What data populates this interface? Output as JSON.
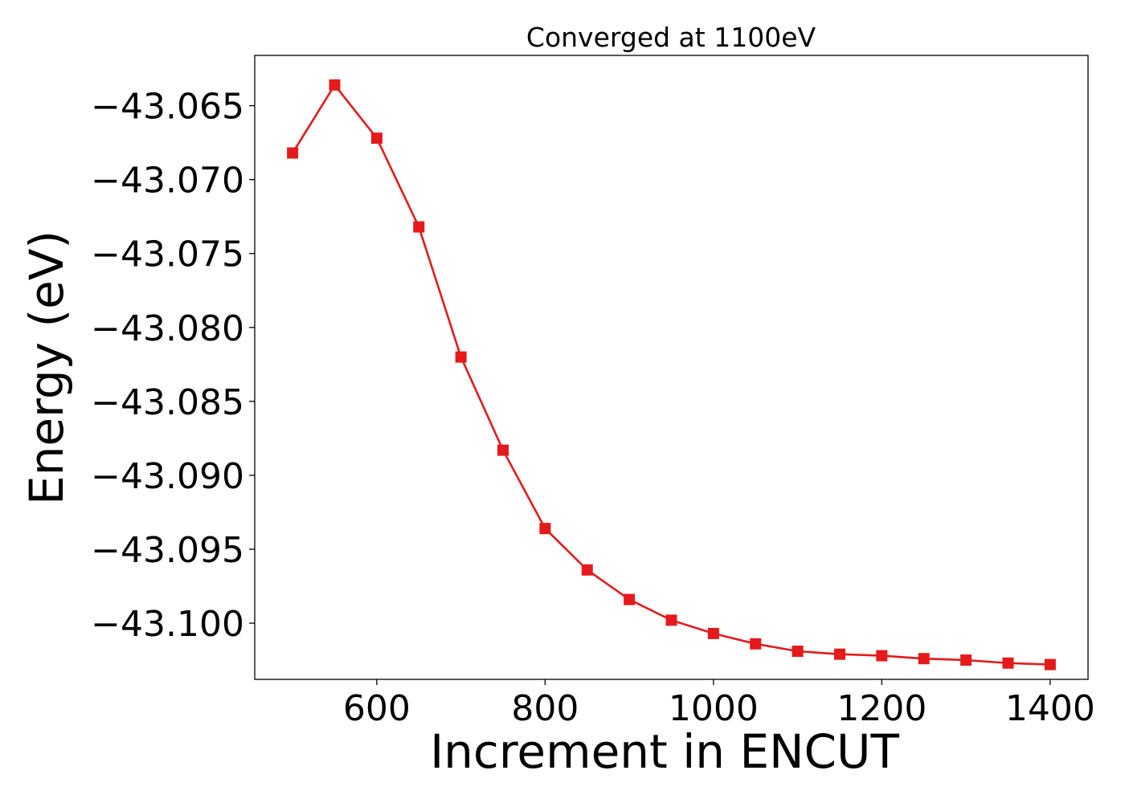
{
  "chart_data": {
    "type": "line",
    "title": "Converged at 1100eV",
    "xlabel": "Increment in ENCUT",
    "ylabel": "Energy (eV)",
    "xlim": [
      455,
      1445
    ],
    "ylim": [
      -43.1038,
      -43.0616
    ],
    "x_ticks": [
      600,
      800,
      1000,
      1200,
      1400
    ],
    "x_tick_labels": [
      "600",
      "800",
      "1000",
      "1200",
      "1400"
    ],
    "y_ticks": [
      -43.065,
      -43.07,
      -43.075,
      -43.08,
      -43.085,
      -43.09,
      -43.095,
      -43.1
    ],
    "y_tick_labels": [
      "−43.065",
      "−43.070",
      "−43.075",
      "−43.080",
      "−43.085",
      "−43.090",
      "−43.095",
      "−43.100"
    ],
    "grid": false,
    "series": [
      {
        "color": "#e41a1c",
        "marker": "square",
        "x": [
          500,
          550,
          600,
          650,
          700,
          750,
          800,
          850,
          900,
          950,
          1000,
          1050,
          1100,
          1150,
          1200,
          1250,
          1300,
          1350,
          1400
        ],
        "y": [
          -43.0682,
          -43.0636,
          -43.0672,
          -43.0732,
          -43.082,
          -43.0883,
          -43.0936,
          -43.0964,
          -43.0984,
          -43.0998,
          -43.1007,
          -43.1014,
          -43.1019,
          -43.1021,
          -43.1022,
          -43.1024,
          -43.1025,
          -43.1027,
          -43.1028
        ]
      }
    ]
  }
}
